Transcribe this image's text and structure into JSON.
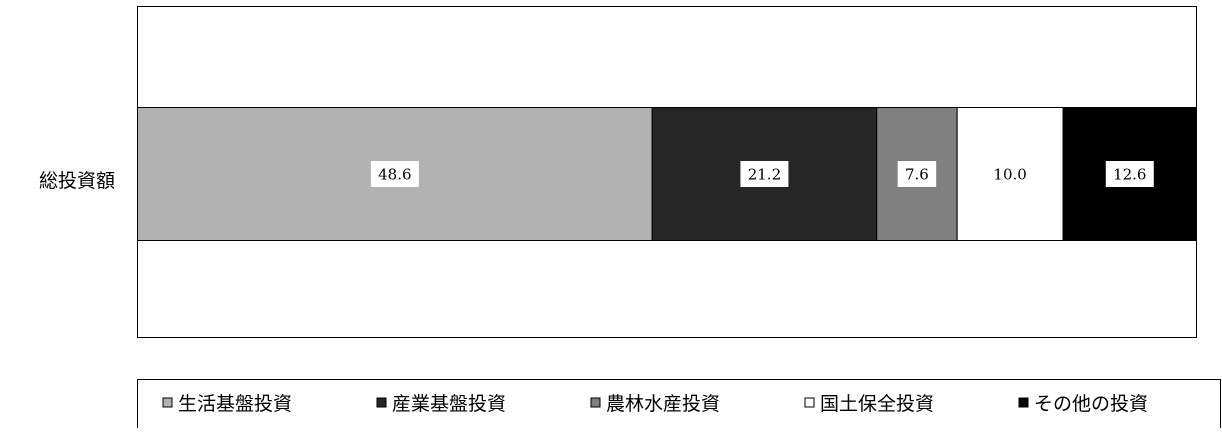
{
  "chart_data": {
    "type": "bar",
    "orientation": "horizontal",
    "stacked": true,
    "categories": [
      "総投資額"
    ],
    "series": [
      {
        "name": "生活基盤投資",
        "values": [
          48.6
        ],
        "color": "#b2b2b2",
        "label_text": "48.6"
      },
      {
        "name": "産業基盤投資",
        "values": [
          21.2
        ],
        "color": "#262626",
        "label_text": "21.2"
      },
      {
        "name": "農林水産投資",
        "values": [
          7.6
        ],
        "color": "#808080",
        "label_text": "7.6"
      },
      {
        "name": "国土保全投資",
        "values": [
          10.0
        ],
        "color": "#ffffff",
        "label_text": "10.0"
      },
      {
        "name": "その他の投資",
        "values": [
          12.6
        ],
        "color": "#000000",
        "label_text": "12.6"
      }
    ],
    "xlim": [
      0,
      100
    ],
    "grid": false,
    "legend_position": "bottom"
  }
}
